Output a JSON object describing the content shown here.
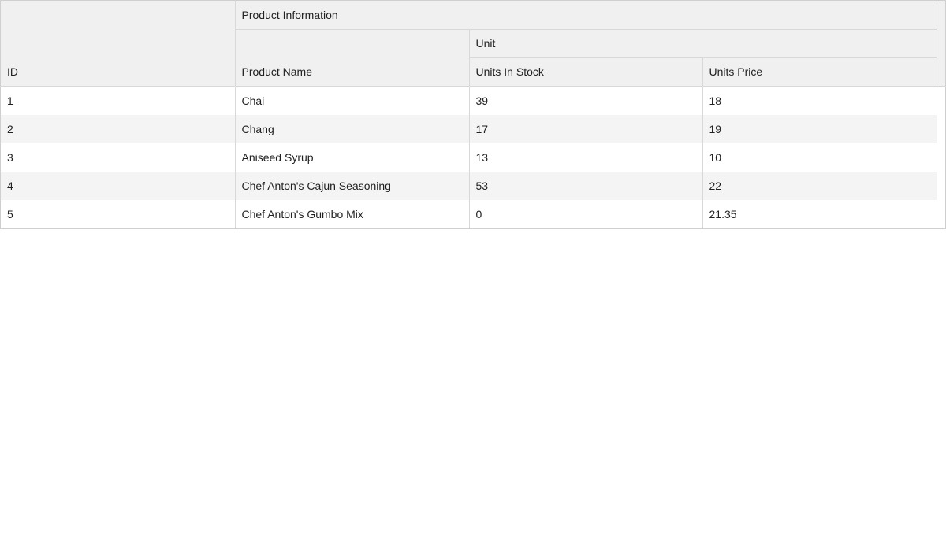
{
  "grid": {
    "header": {
      "id": "ID",
      "group": "Product Information",
      "product_name": "Product Name",
      "unit_group": "Unit",
      "units_in_stock": "Units In Stock",
      "units_price": "Units Price"
    },
    "rows": [
      {
        "id": "1",
        "name": "Chai",
        "stock": "39",
        "price": "18"
      },
      {
        "id": "2",
        "name": "Chang",
        "stock": "17",
        "price": "19"
      },
      {
        "id": "3",
        "name": "Aniseed Syrup",
        "stock": "13",
        "price": "10"
      },
      {
        "id": "4",
        "name": "Chef Anton's Cajun Seasoning",
        "stock": "53",
        "price": "22"
      },
      {
        "id": "5",
        "name": "Chef Anton's Gumbo Mix",
        "stock": "0",
        "price": "21.35"
      }
    ]
  }
}
